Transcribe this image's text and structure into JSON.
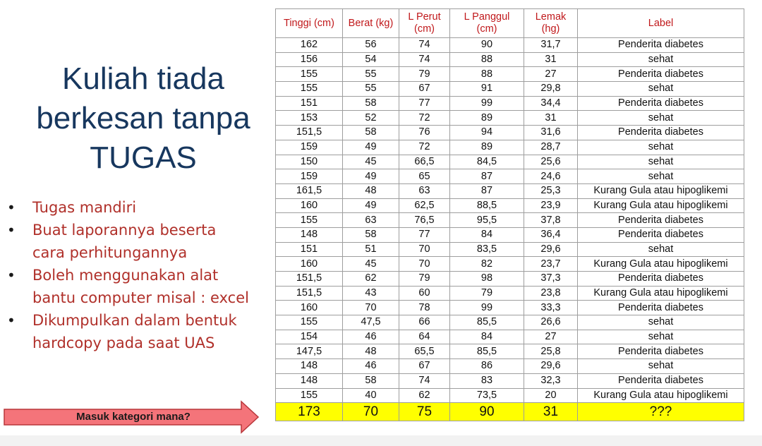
{
  "title": {
    "line1": "Kuliah tiada",
    "line2": "berkesan tanpa",
    "line3": "TUGAS"
  },
  "bullets": [
    {
      "lines": [
        "Tugas mandiri"
      ]
    },
    {
      "lines": [
        "Buat laporannya beserta",
        "cara perhitungannya"
      ]
    },
    {
      "lines": [
        "Boleh menggunakan alat",
        "bantu computer misal : excel"
      ]
    },
    {
      "lines": [
        "Dikumpulkan dalam bentuk",
        "hardcopy pada saat UAS"
      ]
    }
  ],
  "arrow": {
    "label": "Masuk kategori mana?",
    "fill": "#f4747a"
  },
  "table": {
    "header_color": "#c0181b",
    "question_color": "#ffff00",
    "headers": [
      "Tinggi (cm)",
      "Berat (kg)",
      "L Perut (cm)",
      "L Panggul (cm)",
      "Lemak (hg)",
      "Label"
    ],
    "header_lines": [
      [
        "Tinggi (cm)"
      ],
      [
        "Berat (kg)"
      ],
      [
        "L Perut",
        "(cm)"
      ],
      [
        "L Panggul",
        "(cm)"
      ],
      [
        "Lemak",
        "(hg)"
      ],
      [
        "Label"
      ]
    ],
    "rows": [
      [
        "162",
        "56",
        "74",
        "90",
        "31,7",
        "Penderita diabetes"
      ],
      [
        "156",
        "54",
        "74",
        "88",
        "31",
        "sehat"
      ],
      [
        "155",
        "55",
        "79",
        "88",
        "27",
        "Penderita diabetes"
      ],
      [
        "155",
        "55",
        "67",
        "91",
        "29,8",
        "sehat"
      ],
      [
        "151",
        "58",
        "77",
        "99",
        "34,4",
        "Penderita diabetes"
      ],
      [
        "153",
        "52",
        "72",
        "89",
        "31",
        "sehat"
      ],
      [
        "151,5",
        "58",
        "76",
        "94",
        "31,6",
        "Penderita diabetes"
      ],
      [
        "159",
        "49",
        "72",
        "89",
        "28,7",
        "sehat"
      ],
      [
        "150",
        "45",
        "66,5",
        "84,5",
        "25,6",
        "sehat"
      ],
      [
        "159",
        "49",
        "65",
        "87",
        "24,6",
        "sehat"
      ],
      [
        "161,5",
        "48",
        "63",
        "87",
        "25,3",
        "Kurang Gula atau hipoglikemi"
      ],
      [
        "160",
        "49",
        "62,5",
        "88,5",
        "23,9",
        "Kurang Gula atau hipoglikemi"
      ],
      [
        "155",
        "63",
        "76,5",
        "95,5",
        "37,8",
        "Penderita diabetes"
      ],
      [
        "148",
        "58",
        "77",
        "84",
        "36,4",
        "Penderita diabetes"
      ],
      [
        "151",
        "51",
        "70",
        "83,5",
        "29,6",
        "sehat"
      ],
      [
        "160",
        "45",
        "70",
        "82",
        "23,7",
        "Kurang Gula atau hipoglikemi"
      ],
      [
        "151,5",
        "62",
        "79",
        "98",
        "37,3",
        "Penderita diabetes"
      ],
      [
        "151,5",
        "43",
        "60",
        "79",
        "23,8",
        "Kurang Gula atau hipoglikemi"
      ],
      [
        "160",
        "70",
        "78",
        "99",
        "33,3",
        "Penderita diabetes"
      ],
      [
        "155",
        "47,5",
        "66",
        "85,5",
        "26,6",
        "sehat"
      ],
      [
        "154",
        "46",
        "64",
        "84",
        "27",
        "sehat"
      ],
      [
        "147,5",
        "48",
        "65,5",
        "85,5",
        "25,8",
        "Penderita diabetes"
      ],
      [
        "148",
        "46",
        "67",
        "86",
        "29,6",
        "sehat"
      ],
      [
        "148",
        "58",
        "74",
        "83",
        "32,3",
        "Penderita diabetes"
      ],
      [
        "155",
        "40",
        "62",
        "73,5",
        "20",
        "Kurang Gula atau hipoglikemi"
      ]
    ],
    "question_row": [
      "173",
      "70",
      "75",
      "90",
      "31",
      "???"
    ]
  }
}
